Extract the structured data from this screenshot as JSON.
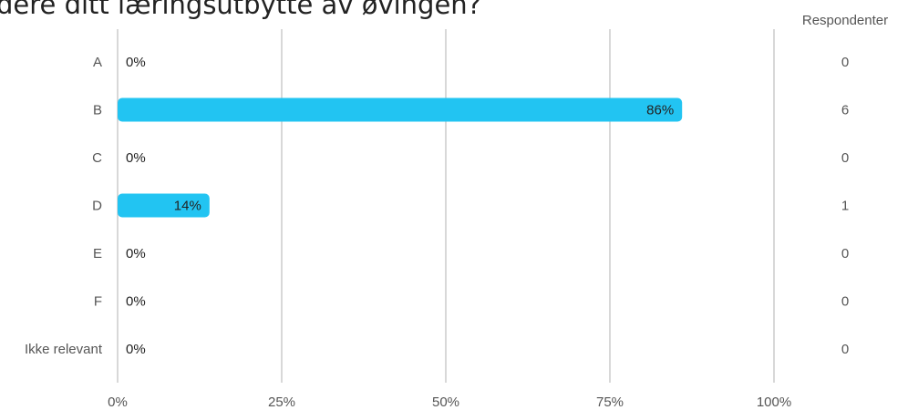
{
  "chart_data": {
    "type": "bar",
    "orientation": "horizontal",
    "title": "dere ditt læringsutbytte av øvingen?",
    "categories": [
      "A",
      "B",
      "C",
      "D",
      "E",
      "F",
      "Ikke relevant"
    ],
    "values": [
      0,
      86,
      0,
      14,
      0,
      0,
      0
    ],
    "value_labels": [
      "0%",
      "86%",
      "0%",
      "14%",
      "0%",
      "0%",
      "0%"
    ],
    "respondents_header": "Respondenter",
    "respondents": [
      0,
      6,
      0,
      1,
      0,
      0,
      0
    ],
    "xlim": [
      0,
      100
    ],
    "xticks": [
      "0%",
      "25%",
      "50%",
      "75%",
      "100%"
    ],
    "xlabel": "",
    "ylabel": "",
    "grid": true,
    "bar_color": "#22c4f2",
    "grid_color": "#cccccc"
  }
}
